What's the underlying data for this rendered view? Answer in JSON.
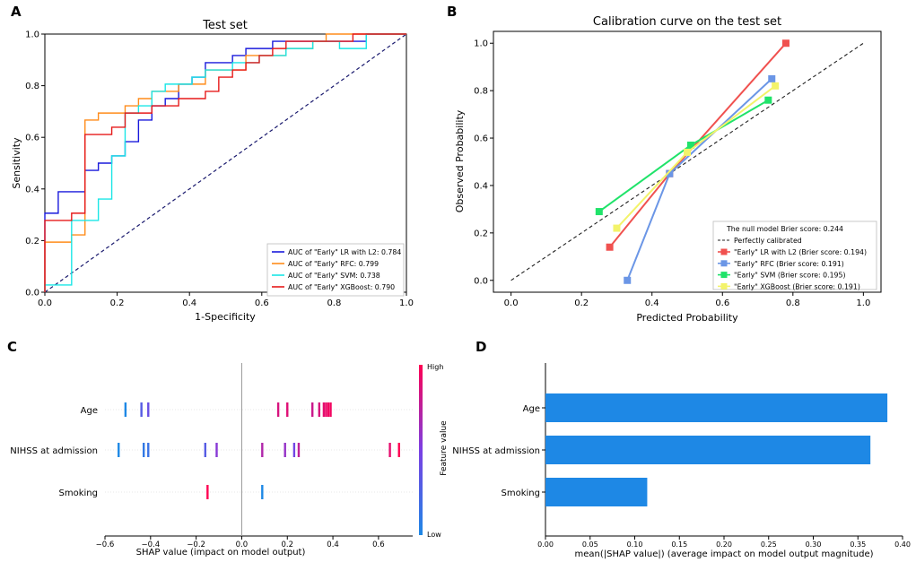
{
  "panel_labels": [
    "A",
    "B",
    "C",
    "D"
  ],
  "chart_data": [
    {
      "id": "A",
      "type": "line",
      "title": "Test set",
      "xlabel": "1-Specificity",
      "ylabel": "Sensitivity",
      "xlim": [
        0,
        1
      ],
      "ylim": [
        0,
        1
      ],
      "xticks": [
        "0.0",
        "0.2",
        "0.4",
        "0.6",
        "0.8",
        "1.0"
      ],
      "yticks": [
        "0.0",
        "0.2",
        "0.4",
        "0.6",
        "0.8",
        "1.0"
      ],
      "legend_position": "lower-right",
      "series": [
        {
          "name": "AUC of \"Early\" LR with L2: 0.784",
          "color": "#1a1adc",
          "x": [
            0,
            0,
            0.037,
            0.037,
            0.111,
            0.111,
            0.148,
            0.148,
            0.185,
            0.185,
            0.222,
            0.222,
            0.259,
            0.259,
            0.296,
            0.296,
            0.333,
            0.333,
            0.37,
            0.37,
            0.407,
            0.407,
            0.444,
            0.444,
            0.519,
            0.519,
            0.556,
            0.556,
            0.63,
            0.63,
            0.889,
            0.889,
            1
          ],
          "y": [
            0,
            0.306,
            0.306,
            0.389,
            0.389,
            0.472,
            0.472,
            0.5,
            0.5,
            0.528,
            0.528,
            0.583,
            0.583,
            0.667,
            0.667,
            0.722,
            0.722,
            0.75,
            0.75,
            0.806,
            0.806,
            0.833,
            0.833,
            0.889,
            0.889,
            0.917,
            0.917,
            0.944,
            0.944,
            0.972,
            0.972,
            1,
            1
          ]
        },
        {
          "name": "AUC of \"Early\" RFC: 0.799",
          "color": "#ff8c1a",
          "x": [
            0,
            0,
            0.074,
            0.074,
            0.111,
            0.111,
            0.148,
            0.148,
            0.222,
            0.222,
            0.259,
            0.259,
            0.296,
            0.296,
            0.37,
            0.37,
            0.444,
            0.444,
            0.556,
            0.556,
            0.667,
            0.667,
            0.741,
            0.741,
            0.778,
            0.778,
            1
          ],
          "y": [
            0,
            0.194,
            0.194,
            0.222,
            0.222,
            0.667,
            0.667,
            0.694,
            0.694,
            0.722,
            0.722,
            0.75,
            0.75,
            0.778,
            0.778,
            0.806,
            0.806,
            0.861,
            0.861,
            0.917,
            0.917,
            0.944,
            0.944,
            0.972,
            0.972,
            1,
            1
          ]
        },
        {
          "name": "AUC of \"Early\" SVM: 0.738",
          "color": "#1ae6e6",
          "x": [
            0,
            0,
            0.074,
            0.074,
            0.148,
            0.148,
            0.185,
            0.185,
            0.222,
            0.222,
            0.259,
            0.259,
            0.296,
            0.296,
            0.333,
            0.333,
            0.407,
            0.407,
            0.444,
            0.444,
            0.519,
            0.519,
            0.593,
            0.593,
            0.667,
            0.667,
            0.741,
            0.741,
            0.815,
            0.815,
            0.889,
            0.889,
            1
          ],
          "y": [
            0,
            0.028,
            0.028,
            0.278,
            0.278,
            0.361,
            0.361,
            0.528,
            0.528,
            0.694,
            0.694,
            0.722,
            0.722,
            0.778,
            0.778,
            0.806,
            0.806,
            0.833,
            0.833,
            0.861,
            0.861,
            0.889,
            0.889,
            0.917,
            0.917,
            0.944,
            0.944,
            0.972,
            0.972,
            0.944,
            0.944,
            1,
            1
          ]
        },
        {
          "name": "AUC of \"Early\" XGBoost: 0.790",
          "color": "#e61a1a",
          "x": [
            0,
            0,
            0.074,
            0.074,
            0.111,
            0.111,
            0.185,
            0.185,
            0.222,
            0.222,
            0.296,
            0.296,
            0.37,
            0.37,
            0.444,
            0.444,
            0.481,
            0.481,
            0.519,
            0.519,
            0.556,
            0.556,
            0.593,
            0.593,
            0.63,
            0.63,
            0.667,
            0.667,
            0.741,
            0.741,
            0.852,
            0.852,
            0.926,
            0.926,
            1
          ],
          "y": [
            0,
            0.278,
            0.278,
            0.306,
            0.306,
            0.611,
            0.611,
            0.639,
            0.639,
            0.694,
            0.694,
            0.722,
            0.722,
            0.75,
            0.75,
            0.778,
            0.778,
            0.833,
            0.833,
            0.861,
            0.861,
            0.889,
            0.889,
            0.917,
            0.917,
            0.944,
            0.944,
            0.972,
            0.972,
            0.972,
            0.972,
            1,
            1,
            1,
            1
          ]
        }
      ],
      "reference_line": {
        "x": [
          0,
          1
        ],
        "y": [
          0,
          1
        ],
        "style": "dashed",
        "color": "#1a1a6e"
      }
    },
    {
      "id": "B",
      "type": "line",
      "title": "Calibration curve on the test set",
      "xlabel": "Predicted Probability",
      "ylabel": "Observed Probability",
      "xlim": [
        -0.05,
        1.05
      ],
      "ylim": [
        -0.05,
        1.05
      ],
      "xticks": [
        "0.0",
        "0.2",
        "0.4",
        "0.6",
        "0.8",
        "1.0"
      ],
      "yticks": [
        "0.0",
        "0.2",
        "0.4",
        "0.6",
        "0.8",
        "1.0"
      ],
      "legend_position": "lower-right",
      "legend_title": "The null model Brier score: 0.244",
      "reference_label": "Perfectly calibrated",
      "series": [
        {
          "name": "\"Early\" LR with L2 (Brier score: 0.194)",
          "color": "#f0514f",
          "x": [
            0.28,
            0.45,
            0.78
          ],
          "y": [
            0.14,
            0.45,
            1.0
          ]
        },
        {
          "name": "\"Early\" RFC (Brier score: 0.191)",
          "color": "#6b96e6",
          "x": [
            0.33,
            0.45,
            0.74
          ],
          "y": [
            0.0,
            0.45,
            0.85
          ]
        },
        {
          "name": "\"Early\" SVM (Brier score: 0.195)",
          "color": "#20e36a",
          "x": [
            0.25,
            0.51,
            0.73
          ],
          "y": [
            0.29,
            0.57,
            0.76
          ]
        },
        {
          "name": "\"Early\" XGBoost (Brier score: 0.191)",
          "color": "#f3f36a",
          "x": [
            0.3,
            0.5,
            0.75
          ],
          "y": [
            0.22,
            0.54,
            0.82
          ]
        }
      ]
    },
    {
      "id": "C",
      "type": "scatter",
      "title": "",
      "xlabel": "SHAP value (impact on model output)",
      "xlim": [
        -0.6,
        0.75
      ],
      "xticks": [
        "−0.6",
        "−0.4",
        "−0.2",
        "0.0",
        "0.2",
        "0.4",
        "0.6"
      ],
      "features": [
        "Age",
        "NIHSS at admission",
        "Smoking"
      ],
      "colorbar": {
        "label": "Feature value",
        "high": "High",
        "low": "Low",
        "colors": [
          "#1e88e5",
          "#7b3fe4",
          "#ff0052"
        ]
      },
      "points": [
        {
          "feature": "Age",
          "x": -0.51,
          "v": 0.0
        },
        {
          "feature": "Age",
          "x": -0.44,
          "v": 0.3
        },
        {
          "feature": "Age",
          "x": -0.41,
          "v": 0.4
        },
        {
          "feature": "Age",
          "x": 0.16,
          "v": 0.85
        },
        {
          "feature": "Age",
          "x": 0.2,
          "v": 0.88
        },
        {
          "feature": "Age",
          "x": 0.31,
          "v": 0.8
        },
        {
          "feature": "Age",
          "x": 0.34,
          "v": 0.85
        },
        {
          "feature": "Age",
          "x": 0.36,
          "v": 0.9
        },
        {
          "feature": "Age",
          "x": 0.37,
          "v": 0.92
        },
        {
          "feature": "Age",
          "x": 0.38,
          "v": 0.95
        },
        {
          "feature": "Age",
          "x": 0.39,
          "v": 0.95
        },
        {
          "feature": "NIHSS at admission",
          "x": -0.54,
          "v": 0.0
        },
        {
          "feature": "NIHSS at admission",
          "x": -0.43,
          "v": 0.1
        },
        {
          "feature": "NIHSS at admission",
          "x": -0.41,
          "v": 0.15
        },
        {
          "feature": "NIHSS at admission",
          "x": -0.16,
          "v": 0.3
        },
        {
          "feature": "NIHSS at admission",
          "x": -0.11,
          "v": 0.55
        },
        {
          "feature": "NIHSS at admission",
          "x": 0.09,
          "v": 0.7
        },
        {
          "feature": "NIHSS at admission",
          "x": 0.19,
          "v": 0.6
        },
        {
          "feature": "NIHSS at admission",
          "x": 0.23,
          "v": 0.45
        },
        {
          "feature": "NIHSS at admission",
          "x": 0.25,
          "v": 0.75
        },
        {
          "feature": "NIHSS at admission",
          "x": 0.65,
          "v": 0.9
        },
        {
          "feature": "NIHSS at admission",
          "x": 0.69,
          "v": 1.0
        },
        {
          "feature": "Smoking",
          "x": -0.15,
          "v": 1.0
        },
        {
          "feature": "Smoking",
          "x": 0.09,
          "v": 0.0
        }
      ]
    },
    {
      "id": "D",
      "type": "bar",
      "orientation": "horizontal",
      "categories": [
        "Age",
        "NIHSS at admission",
        "Smoking"
      ],
      "values": [
        0.383,
        0.364,
        0.114
      ],
      "xlabel": "mean(|SHAP value|) (average impact on model output magnitude)",
      "xlim": [
        0,
        0.4
      ],
      "xticks": [
        "0.00",
        "0.05",
        "0.10",
        "0.15",
        "0.20",
        "0.25",
        "0.30",
        "0.35",
        "0.40"
      ],
      "color": "#1e88e5"
    }
  ]
}
